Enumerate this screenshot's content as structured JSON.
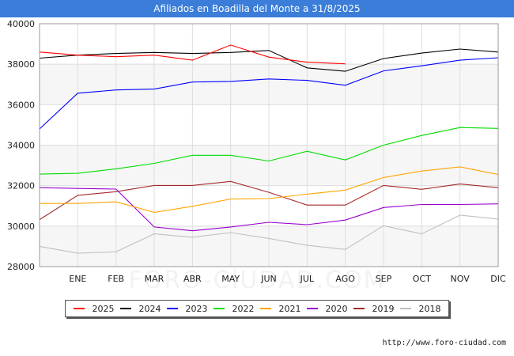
{
  "title": "Afiliados en Boadilla del Monte a 31/8/2025",
  "source": "http://www.foro-ciudad.com",
  "watermark": "FORO-CIUDAD.COM",
  "chart_data": {
    "type": "line",
    "categories": [
      "",
      "ENE",
      "FEB",
      "MAR",
      "ABR",
      "MAY",
      "JUN",
      "JUL",
      "AGO",
      "SEP",
      "OCT",
      "NOV",
      "DIC"
    ],
    "ylim": [
      28000,
      40000
    ],
    "yticks": [
      28000,
      30000,
      32000,
      34000,
      36000,
      38000,
      40000
    ],
    "ytick_labels": [
      "28000",
      "30000",
      "32000",
      "34000",
      "36000",
      "38000",
      "40000"
    ],
    "grid": true,
    "legend_position": "bottom",
    "series": [
      {
        "name": "2025",
        "color": "#ff0000",
        "values": [
          38600,
          38450,
          38370,
          38450,
          38200,
          38950,
          38350,
          38100,
          38020,
          null,
          null,
          null,
          null
        ]
      },
      {
        "name": "2024",
        "color": "#000000",
        "values": [
          38300,
          38450,
          38530,
          38580,
          38530,
          38580,
          38680,
          37820,
          37650,
          38280,
          38550,
          38750,
          38600
        ]
      },
      {
        "name": "2023",
        "color": "#0000ff",
        "values": [
          34800,
          36570,
          36730,
          36770,
          37120,
          37150,
          37270,
          37200,
          36960,
          37670,
          37920,
          38200,
          38320
        ]
      },
      {
        "name": "2022",
        "color": "#00dd00",
        "values": [
          32570,
          32610,
          32830,
          33100,
          33500,
          33500,
          33220,
          33700,
          33270,
          34000,
          34480,
          34870,
          34830
        ]
      },
      {
        "name": "2021",
        "color": "#ffa500",
        "values": [
          31120,
          31120,
          31200,
          30680,
          30980,
          31340,
          31360,
          31580,
          31780,
          32400,
          32720,
          32930,
          32550
        ]
      },
      {
        "name": "2020",
        "color": "#9900cc",
        "values": [
          31900,
          31860,
          31830,
          29960,
          29770,
          29960,
          30190,
          30070,
          30300,
          30920,
          31070,
          31070,
          31100
        ]
      },
      {
        "name": "2019",
        "color": "#a52a2a",
        "values": [
          30320,
          31520,
          31700,
          32010,
          32010,
          32210,
          31670,
          31040,
          31040,
          32010,
          31820,
          32080,
          31900
        ]
      },
      {
        "name": "2018",
        "color": "#c0c0c0",
        "values": [
          29000,
          28660,
          28730,
          29620,
          29450,
          29680,
          29390,
          29050,
          28850,
          30020,
          29620,
          30540,
          30350
        ]
      }
    ]
  }
}
